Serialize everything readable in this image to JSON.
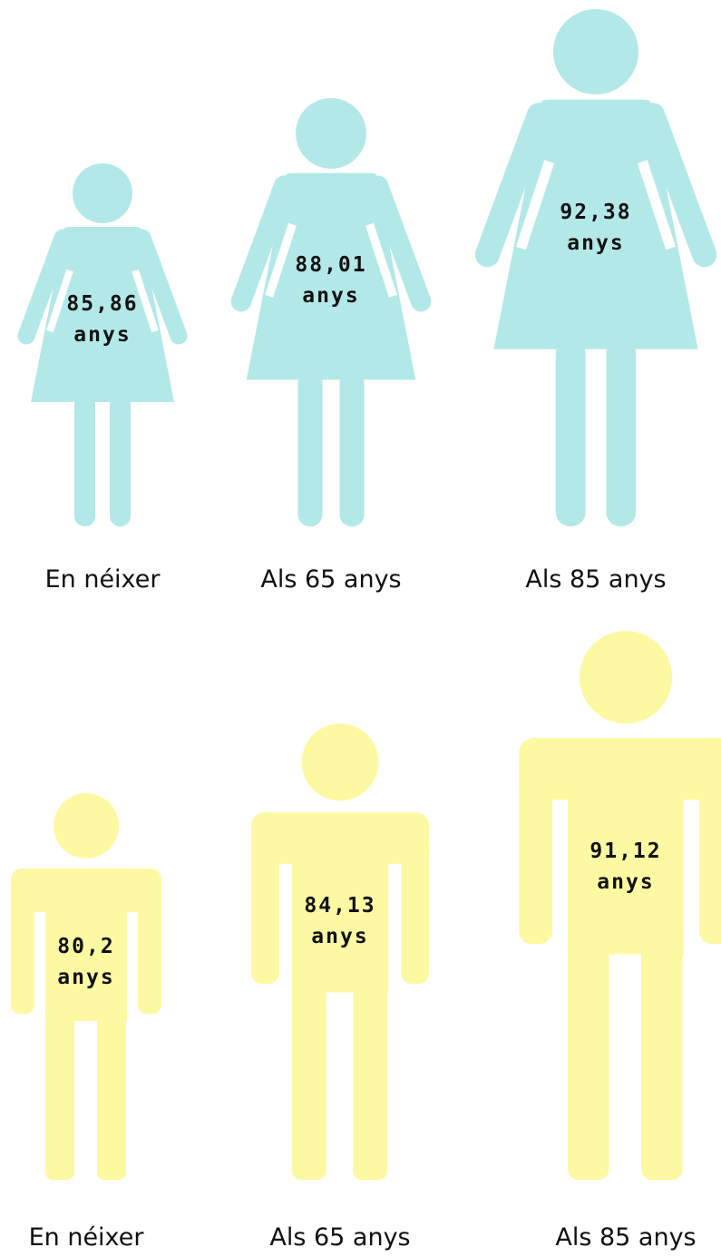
{
  "women": [
    {
      "value": "85,86",
      "unit": "anys",
      "caption": "En néixer"
    },
    {
      "value": "88,01",
      "unit": "anys",
      "caption": "Als 65 anys"
    },
    {
      "value": "92,38",
      "unit": "anys",
      "caption": "Als 85 anys"
    }
  ],
  "men": [
    {
      "value": "80,2",
      "unit": "anys",
      "caption": "En néixer"
    },
    {
      "value": "84,13",
      "unit": "anys",
      "caption": "Als 65 anys"
    },
    {
      "value": "91,12",
      "unit": "anys",
      "caption": "Als 85 anys"
    }
  ]
}
